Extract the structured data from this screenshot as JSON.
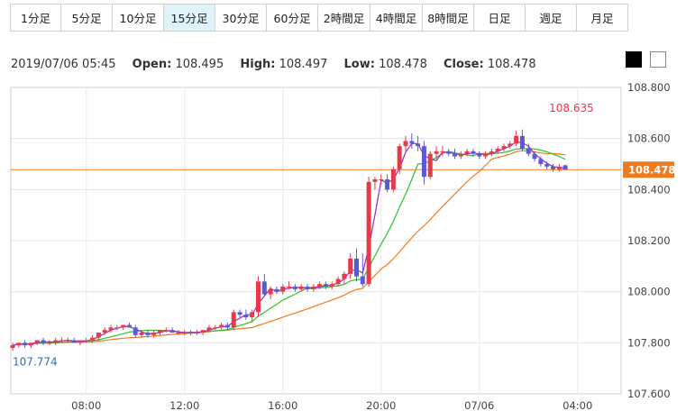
{
  "timeframes": {
    "items": [
      "1分足",
      "5分足",
      "10分足",
      "15分足",
      "30分足",
      "60分足",
      "2時間足",
      "4時間足",
      "8時間足",
      "日足",
      "週足",
      "月足"
    ],
    "active_index": 3
  },
  "info": {
    "datetime": "2019/07/06 05:45",
    "open_label": "Open:",
    "open": "108.495",
    "high_label": "High:",
    "high": "108.497",
    "low_label": "Low:",
    "low": "108.478",
    "close_label": "Close:",
    "close": "108.478"
  },
  "theme": {
    "dark": "#000000",
    "light": "#ffffff"
  },
  "colors": {
    "up": "#e8394a",
    "down": "#5a5ad6",
    "ma_short": "#9b26c9",
    "ma_mid": "#2ec22e",
    "ma_long": "#f07a1e",
    "price_line": "#f07a1e"
  },
  "chart_data": {
    "type": "candlestick",
    "y_axis": {
      "ticks": [
        108.8,
        108.6,
        108.4,
        108.2,
        108.0,
        107.8,
        107.6
      ],
      "tick_labels": [
        "108.800",
        "108.600",
        "108.400",
        "108.200",
        "108.000",
        "107.800",
        "107.600"
      ],
      "ylim": [
        107.6,
        108.8
      ],
      "position": "right"
    },
    "x_axis": {
      "tick_labels": [
        "08:00",
        "12:00",
        "16:00",
        "20:00",
        "07/06",
        "04:00"
      ],
      "tick_times": [
        "08:00",
        "12:00",
        "16:00",
        "20:00",
        "00:00",
        "04:00"
      ],
      "start": "05:00",
      "end": "06:00",
      "interval": "15min"
    },
    "high_marker": {
      "label": "108.635",
      "value": 108.635,
      "time": "03:45"
    },
    "low_marker": {
      "label": "107.774",
      "value": 107.774,
      "time": "05:00"
    },
    "current_price": {
      "label": "108.478",
      "value": 108.478
    },
    "ohlc": [
      [
        107.78,
        107.8,
        107.77,
        107.79
      ],
      [
        107.79,
        107.8,
        107.78,
        107.8
      ],
      [
        107.8,
        107.81,
        107.78,
        107.79
      ],
      [
        107.79,
        107.8,
        107.78,
        107.8
      ],
      [
        107.8,
        107.81,
        107.79,
        107.81
      ],
      [
        107.81,
        107.82,
        107.79,
        107.8
      ],
      [
        107.8,
        107.81,
        107.79,
        107.8
      ],
      [
        107.8,
        107.82,
        107.79,
        107.81
      ],
      [
        107.81,
        107.82,
        107.8,
        107.81
      ],
      [
        107.81,
        107.82,
        107.8,
        107.81
      ],
      [
        107.81,
        107.82,
        107.8,
        107.8
      ],
      [
        107.8,
        107.81,
        107.79,
        107.81
      ],
      [
        107.81,
        107.82,
        107.8,
        107.81
      ],
      [
        107.81,
        107.83,
        107.8,
        107.82
      ],
      [
        107.82,
        107.84,
        107.81,
        107.84
      ],
      [
        107.84,
        107.86,
        107.83,
        107.85
      ],
      [
        107.85,
        107.87,
        107.84,
        107.86
      ],
      [
        107.86,
        107.87,
        107.85,
        107.86
      ],
      [
        107.86,
        107.87,
        107.85,
        107.87
      ],
      [
        107.87,
        107.88,
        107.86,
        107.86
      ],
      [
        107.86,
        107.87,
        107.82,
        107.83
      ],
      [
        107.83,
        107.85,
        107.82,
        107.84
      ],
      [
        107.84,
        107.85,
        107.82,
        107.83
      ],
      [
        107.83,
        107.85,
        107.82,
        107.84
      ],
      [
        107.84,
        107.85,
        107.83,
        107.85
      ],
      [
        107.85,
        107.86,
        107.84,
        107.85
      ],
      [
        107.85,
        107.86,
        107.84,
        107.84
      ],
      [
        107.84,
        107.85,
        107.83,
        107.84
      ],
      [
        107.84,
        107.85,
        107.83,
        107.84
      ],
      [
        107.84,
        107.85,
        107.83,
        107.84
      ],
      [
        107.84,
        107.85,
        107.83,
        107.84
      ],
      [
        107.84,
        107.85,
        107.83,
        107.85
      ],
      [
        107.85,
        107.87,
        107.84,
        107.86
      ],
      [
        107.86,
        107.87,
        107.85,
        107.86
      ],
      [
        107.86,
        107.88,
        107.85,
        107.87
      ],
      [
        107.87,
        107.88,
        107.85,
        107.86
      ],
      [
        107.86,
        107.93,
        107.85,
        107.92
      ],
      [
        107.92,
        107.93,
        107.9,
        107.91
      ],
      [
        107.91,
        107.93,
        107.89,
        107.9
      ],
      [
        107.9,
        107.93,
        107.88,
        107.92
      ],
      [
        107.92,
        108.06,
        107.9,
        108.04
      ],
      [
        108.04,
        108.07,
        107.98,
        107.99
      ],
      [
        107.99,
        108.02,
        107.97,
        108.01
      ],
      [
        108.01,
        108.02,
        107.99,
        108.0
      ],
      [
        108.0,
        108.03,
        107.99,
        108.02
      ],
      [
        108.02,
        108.04,
        108.01,
        108.02
      ],
      [
        108.02,
        108.03,
        108.0,
        108.01
      ],
      [
        108.01,
        108.03,
        108.0,
        108.02
      ],
      [
        108.02,
        108.03,
        108.0,
        108.01
      ],
      [
        108.01,
        108.03,
        108.0,
        108.02
      ],
      [
        108.02,
        108.04,
        108.01,
        108.03
      ],
      [
        108.03,
        108.04,
        108.01,
        108.02
      ],
      [
        108.02,
        108.04,
        108.01,
        108.03
      ],
      [
        108.03,
        108.06,
        108.02,
        108.05
      ],
      [
        108.05,
        108.08,
        108.03,
        108.07
      ],
      [
        108.07,
        108.15,
        108.05,
        108.13
      ],
      [
        108.13,
        108.17,
        108.04,
        108.06
      ],
      [
        108.06,
        108.15,
        108.02,
        108.03
      ],
      [
        108.03,
        108.45,
        108.02,
        108.43
      ],
      [
        108.43,
        108.45,
        108.4,
        108.44
      ],
      [
        108.44,
        108.46,
        108.42,
        108.44
      ],
      [
        108.44,
        108.46,
        108.39,
        108.4
      ],
      [
        108.4,
        108.49,
        108.39,
        108.48
      ],
      [
        108.48,
        108.58,
        108.46,
        108.57
      ],
      [
        108.57,
        108.61,
        108.55,
        108.59
      ],
      [
        108.59,
        108.62,
        108.56,
        108.58
      ],
      [
        108.58,
        108.61,
        108.55,
        108.57
      ],
      [
        108.57,
        108.59,
        108.42,
        108.45
      ],
      [
        108.45,
        108.55,
        108.44,
        108.54
      ],
      [
        108.54,
        108.57,
        108.52,
        108.55
      ],
      [
        108.55,
        108.57,
        108.53,
        108.55
      ],
      [
        108.55,
        108.56,
        108.53,
        108.54
      ],
      [
        108.54,
        108.56,
        108.52,
        108.53
      ],
      [
        108.53,
        108.55,
        108.52,
        108.54
      ],
      [
        108.54,
        108.56,
        108.53,
        108.55
      ],
      [
        108.55,
        108.56,
        108.53,
        108.54
      ],
      [
        108.54,
        108.55,
        108.52,
        108.53
      ],
      [
        108.53,
        108.55,
        108.52,
        108.54
      ],
      [
        108.54,
        108.56,
        108.53,
        108.55
      ],
      [
        108.55,
        108.57,
        108.54,
        108.56
      ],
      [
        108.56,
        108.58,
        108.55,
        108.57
      ],
      [
        108.57,
        108.59,
        108.56,
        108.58
      ],
      [
        108.58,
        108.63,
        108.57,
        108.61
      ],
      [
        108.61,
        108.635,
        108.55,
        108.56
      ],
      [
        108.56,
        108.58,
        108.53,
        108.54
      ],
      [
        108.54,
        108.55,
        108.51,
        108.52
      ],
      [
        108.52,
        108.53,
        108.49,
        108.5
      ],
      [
        108.5,
        108.51,
        108.48,
        108.49
      ],
      [
        108.49,
        108.5,
        108.47,
        108.48
      ],
      [
        108.48,
        108.5,
        108.47,
        108.49
      ],
      [
        108.495,
        108.497,
        108.478,
        108.478
      ]
    ]
  }
}
